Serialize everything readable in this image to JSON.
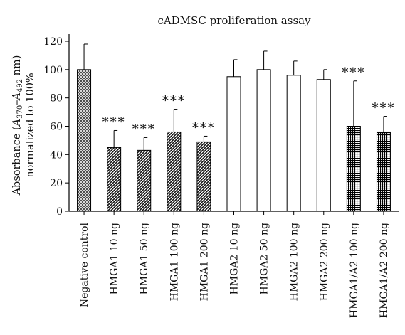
{
  "chart_data": {
    "type": "bar",
    "title": "cADMSC proliferation assay",
    "ylabel_line1_prefix": "Absorbance (",
    "ylabel_a": "A",
    "ylabel_sub1": "370",
    "ylabel_dash": "–",
    "ylabel_sub2": "492",
    "ylabel_line1_suffix": " nm)",
    "ylabel_line2": "normalized to 100%",
    "xlabel": "",
    "ylim": [
      0,
      120
    ],
    "yticks": [
      0,
      20,
      40,
      60,
      80,
      100,
      120
    ],
    "grid": false,
    "legend": "none",
    "significance_marker": "***",
    "categories": [
      "Negative control",
      "HMGA1 10 ng",
      "HMGA1 50 ng",
      "HMGA1 100 ng",
      "HMGA1 200 ng",
      "HMGA2 10 ng",
      "HMGA2 50 ng",
      "HMGA2 100 ng",
      "HMGA2 200 ng",
      "HMGA1/A2 100 ng",
      "HMGA1/A2 200 ng"
    ],
    "values": [
      100,
      45,
      43,
      56,
      49,
      95,
      100,
      96,
      93,
      60,
      56
    ],
    "errors": [
      18,
      12,
      9,
      16,
      4,
      12,
      13,
      10,
      7,
      32,
      11
    ],
    "significant": [
      false,
      true,
      true,
      true,
      true,
      false,
      false,
      false,
      false,
      true,
      true
    ],
    "fill_patterns": [
      "crosshatch-fine",
      "diagonal-hatch",
      "diagonal-hatch",
      "diagonal-hatch",
      "diagonal-hatch",
      "white",
      "white",
      "white",
      "white",
      "grid-dense",
      "grid-dense"
    ]
  }
}
